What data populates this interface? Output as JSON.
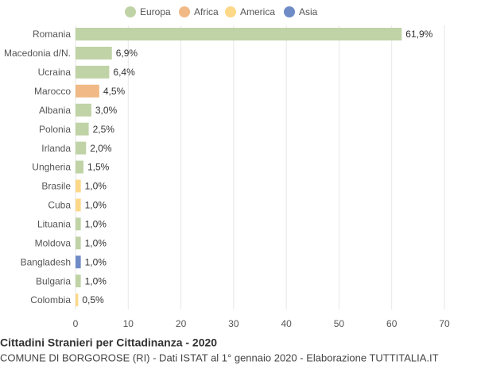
{
  "chart_data": {
    "type": "bar",
    "orientation": "horizontal",
    "title": "Cittadini Stranieri per Cittadinanza - 2020",
    "subtitle": "COMUNE DI BORGOROSE (RI) - Dati ISTAT al 1° gennaio 2020 - Elaborazione TUTTITALIA.IT",
    "categories": [
      "Romania",
      "Macedonia d/N.",
      "Ucraina",
      "Marocco",
      "Albania",
      "Polonia",
      "Irlanda",
      "Ungheria",
      "Brasile",
      "Cuba",
      "Lituania",
      "Moldova",
      "Bangladesh",
      "Bulgaria",
      "Colombia"
    ],
    "series": [
      {
        "name": "Europa",
        "color": "#bfd3a6",
        "values": [
          61.9,
          6.9,
          6.4,
          null,
          3.0,
          2.5,
          2.0,
          1.5,
          null,
          null,
          1.0,
          1.0,
          null,
          1.0,
          null
        ],
        "value_labels": [
          "61,9%",
          "6,9%",
          "6,4%",
          null,
          "3,0%",
          "2,5%",
          "2,0%",
          "1,5%",
          null,
          null,
          "1,0%",
          "1,0%",
          null,
          "1,0%",
          null
        ]
      },
      {
        "name": "Africa",
        "color": "#f0b986",
        "values": [
          null,
          null,
          null,
          4.5,
          null,
          null,
          null,
          null,
          null,
          null,
          null,
          null,
          null,
          null,
          null
        ],
        "value_labels": [
          null,
          null,
          null,
          "4,5%",
          null,
          null,
          null,
          null,
          null,
          null,
          null,
          null,
          null,
          null,
          null
        ]
      },
      {
        "name": "America",
        "color": "#fcd888",
        "values": [
          null,
          null,
          null,
          null,
          null,
          null,
          null,
          null,
          1.0,
          1.0,
          null,
          null,
          null,
          null,
          0.5
        ],
        "value_labels": [
          null,
          null,
          null,
          null,
          null,
          null,
          null,
          null,
          "1,0%",
          "1,0%",
          null,
          null,
          null,
          null,
          "0,5%"
        ]
      },
      {
        "name": "Asia",
        "color": "#6f8cc7",
        "values": [
          null,
          null,
          null,
          null,
          null,
          null,
          null,
          null,
          null,
          null,
          null,
          null,
          1.0,
          null,
          null
        ],
        "value_labels": [
          null,
          null,
          null,
          null,
          null,
          null,
          null,
          null,
          null,
          null,
          null,
          null,
          "1,0%",
          null,
          null
        ]
      }
    ],
    "xlim": [
      0,
      70
    ],
    "xticks": [
      0,
      10,
      20,
      30,
      40,
      50,
      60,
      70
    ],
    "grid": true,
    "legend": "top"
  }
}
